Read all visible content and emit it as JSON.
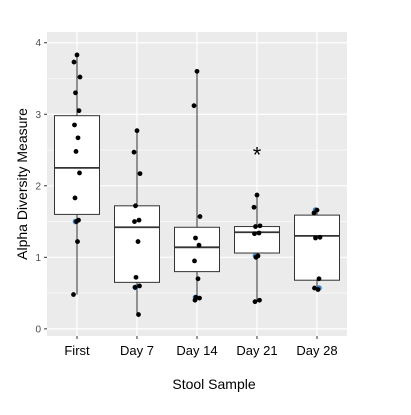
{
  "chart_data": {
    "type": "box",
    "title": "",
    "xlabel": "Stool Sample",
    "ylabel": "Alpha Diversity Measure",
    "categories": [
      "First",
      "Day 7",
      "Day 14",
      "Day 21",
      "Day 28"
    ],
    "ylim": [
      -0.1,
      4.15
    ],
    "yticks": [
      0,
      1,
      2,
      3,
      4
    ],
    "grid": true,
    "boxes": [
      {
        "category": "First",
        "whisker_low": 0.48,
        "q1": 1.6,
        "median": 2.25,
        "q3": 2.98,
        "whisker_high": 3.83
      },
      {
        "category": "Day 7",
        "whisker_low": 0.2,
        "q1": 0.65,
        "median": 1.42,
        "q3": 1.72,
        "whisker_high": 2.77
      },
      {
        "category": "Day 14",
        "whisker_low": 0.4,
        "q1": 0.8,
        "median": 1.14,
        "q3": 1.42,
        "whisker_high": 3.6
      },
      {
        "category": "Day 21",
        "whisker_low": 0.38,
        "q1": 1.06,
        "median": 1.35,
        "q3": 1.43,
        "whisker_high": 1.87
      },
      {
        "category": "Day 28",
        "whisker_low": 0.55,
        "q1": 0.68,
        "median": 1.3,
        "q3": 1.59,
        "whisker_high": 1.66
      }
    ],
    "points": [
      {
        "category": "First",
        "values": [
          3.83,
          3.73,
          3.52,
          3.3,
          3.05,
          2.85,
          2.67,
          2.48,
          2.18,
          1.83,
          1.52,
          1.5,
          1.22,
          0.48
        ],
        "blue": [
          1.5
        ]
      },
      {
        "category": "Day 7",
        "values": [
          2.77,
          2.47,
          2.17,
          1.72,
          1.52,
          1.5,
          1.22,
          0.72,
          0.6,
          0.58,
          0.2
        ],
        "blue": [
          0.58
        ]
      },
      {
        "category": "Day 14",
        "values": [
          3.6,
          3.12,
          1.57,
          1.27,
          1.17,
          0.95,
          0.7,
          0.44,
          0.43,
          0.4
        ],
        "blue": [
          0.44
        ]
      },
      {
        "category": "Day 21",
        "values": [
          1.87,
          1.7,
          1.44,
          1.43,
          1.34,
          1.33,
          1.02,
          1.0,
          0.4,
          0.38
        ],
        "blue": [
          1.02
        ]
      },
      {
        "category": "Day 28",
        "values": [
          1.66,
          1.62,
          1.28,
          1.27,
          0.7,
          0.57,
          0.55
        ],
        "blue": [
          1.66,
          0.57
        ]
      }
    ],
    "annotations": [
      {
        "category": "Day 21",
        "text": "*",
        "y": 2.45
      }
    ],
    "colors": {
      "panel_background": "#ebebeb",
      "grid": "#ffffff",
      "box_fill": "#ffffff",
      "box_stroke": "#333333",
      "point": "#000000",
      "point_highlight": "#3a7fc1"
    }
  }
}
